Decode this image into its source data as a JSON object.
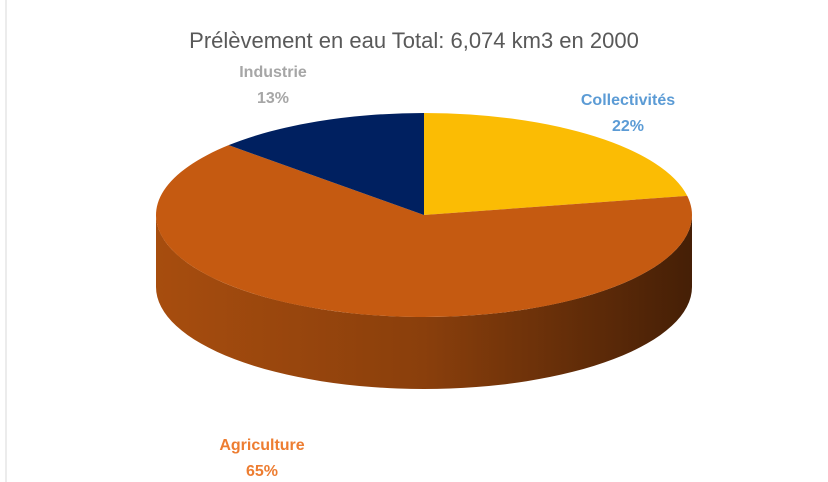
{
  "chart_data": {
    "type": "pie",
    "title": "Prélèvement en eau Total: 6,074 km3 en 2000",
    "categories": [
      "Collectivités",
      "Agriculture",
      "Industrie"
    ],
    "values": [
      22,
      65,
      13
    ],
    "value_labels": [
      "22%",
      "65%",
      "13%"
    ],
    "colors": [
      "#fbbc04",
      "#c55a11",
      "#002060"
    ],
    "label_colors": [
      "#5b9bd5",
      "#ed7d31",
      "#a6a6a6"
    ]
  }
}
